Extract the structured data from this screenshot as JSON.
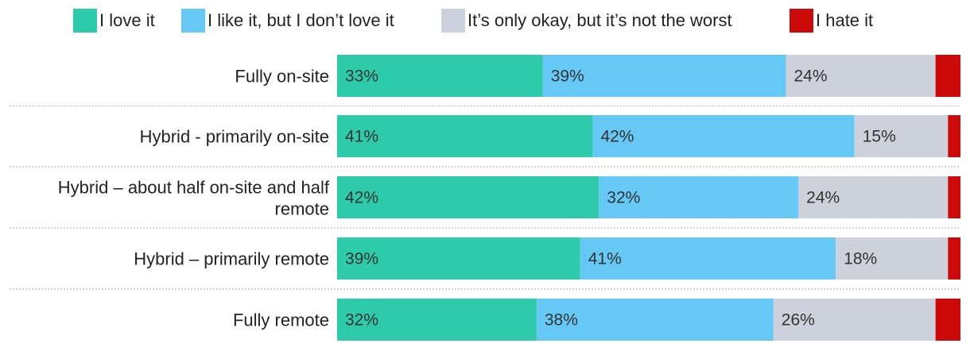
{
  "legend": [
    {
      "label": "I love it",
      "color": "#2ecbaa"
    },
    {
      "label": "I like it, but I don’t love it",
      "color": "#66c8f5"
    },
    {
      "label": "It’s only okay, but it’s not the worst",
      "color": "#cdd1db"
    },
    {
      "label": "I hate it",
      "color": "#cc0a0a"
    }
  ],
  "chart_data": {
    "type": "bar",
    "orientation": "horizontal",
    "stacked": true,
    "percent_stacked": true,
    "categories": [
      "Fully on-site",
      "Hybrid - primarily on-site",
      "Hybrid – about half on-site and half remote",
      "Hybrid – primarily remote",
      "Fully remote"
    ],
    "series": [
      {
        "name": "I love it",
        "color": "#2ecbaa",
        "values": [
          33,
          41,
          42,
          39,
          32
        ],
        "labels": [
          "33%",
          "41%",
          "42%",
          "39%",
          "32%"
        ]
      },
      {
        "name": "I like it, but I don’t love it",
        "color": "#66c8f5",
        "values": [
          39,
          42,
          32,
          41,
          38
        ],
        "labels": [
          "39%",
          "42%",
          "32%",
          "41%",
          "38%"
        ]
      },
      {
        "name": "It’s only okay, but it’s not the worst",
        "color": "#cdd1db",
        "values": [
          24,
          15,
          24,
          18,
          26
        ],
        "labels": [
          "24%",
          "15%",
          "24%",
          "18%",
          "26%"
        ]
      },
      {
        "name": "I hate it",
        "color": "#cc0a0a",
        "values": [
          4,
          2,
          2,
          2,
          4
        ],
        "labels": [
          "",
          "",
          "",
          "",
          ""
        ]
      }
    ],
    "legend_position": "top",
    "grid": false,
    "title": "",
    "xlabel": "",
    "ylabel": ""
  }
}
